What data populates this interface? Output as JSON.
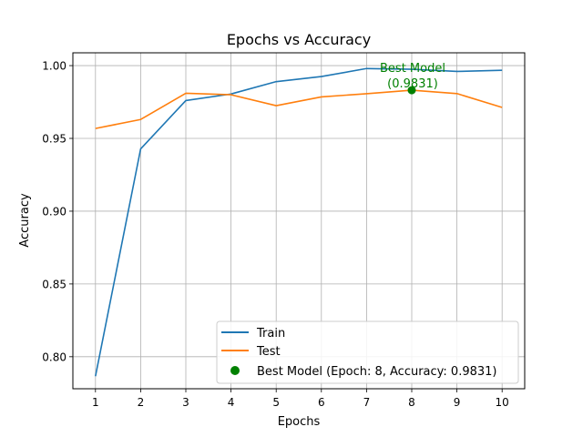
{
  "chart_data": {
    "type": "line",
    "title": "Epochs vs Accuracy",
    "xlabel": "Epochs",
    "ylabel": "Accuracy",
    "x": [
      1,
      2,
      3,
      4,
      5,
      6,
      7,
      8,
      9,
      10
    ],
    "xlim": [
      0.5,
      10.5
    ],
    "ylim": [
      0.778,
      1.0088
    ],
    "xticks": [
      1,
      2,
      3,
      4,
      5,
      6,
      7,
      8,
      9,
      10
    ],
    "yticks": [
      0.8,
      0.85,
      0.9,
      0.95,
      1.0
    ],
    "ytick_labels": [
      "0.80",
      "0.85",
      "0.90",
      "0.95",
      "1.00"
    ],
    "grid": true,
    "series": [
      {
        "name": "Train",
        "color": "#1f77b4",
        "values": [
          0.7866,
          0.9428,
          0.976,
          0.9805,
          0.989,
          0.9925,
          0.998,
          0.9975,
          0.996,
          0.9968
        ]
      },
      {
        "name": "Test",
        "color": "#ff7f0e",
        "values": [
          0.9568,
          0.963,
          0.981,
          0.98,
          0.9725,
          0.9785,
          0.9807,
          0.9831,
          0.9808,
          0.9713
        ]
      }
    ],
    "highlight": {
      "name": "Best Model (Epoch: 8, Accuracy: 0.9831)",
      "x": 8,
      "y": 0.9831,
      "color": "#008000",
      "annotation_line1": "Best Model",
      "annotation_line2": "(0.9831)"
    },
    "legend": {
      "placement": "lower-right"
    }
  }
}
